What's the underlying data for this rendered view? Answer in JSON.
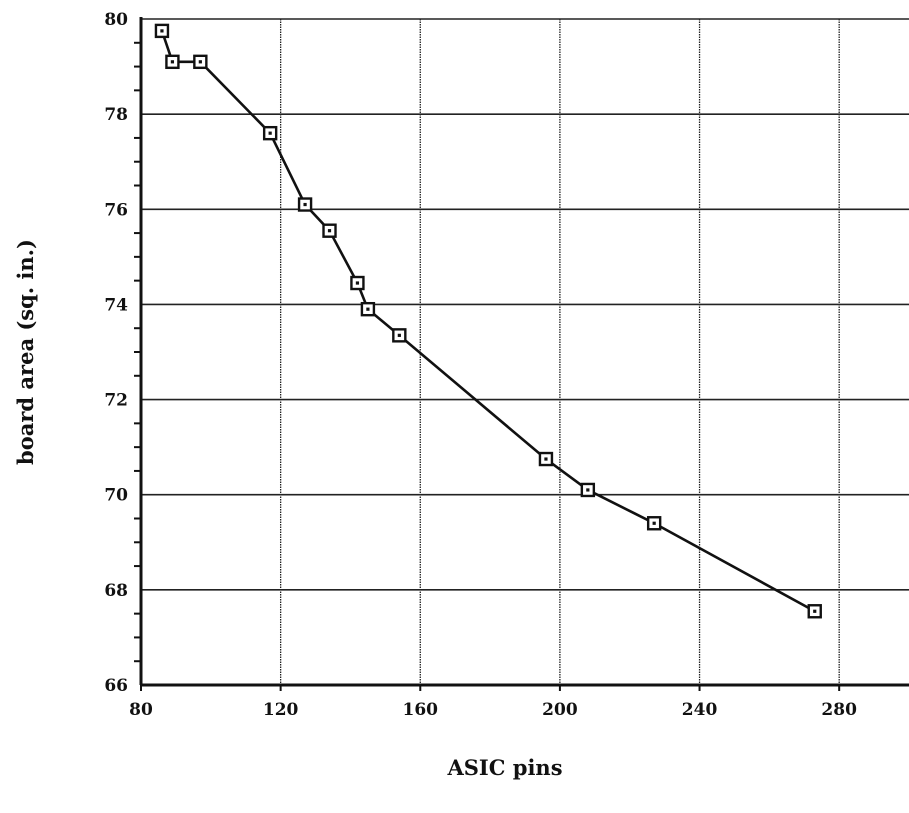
{
  "chart_data": {
    "type": "line",
    "title": "",
    "xlabel": "ASIC pins",
    "ylabel": "board area (sq. in.)",
    "xlim": [
      80,
      300
    ],
    "ylim": [
      66,
      80
    ],
    "xticks": [
      80,
      120,
      160,
      200,
      240,
      280
    ],
    "xtick_labels": [
      "80",
      "120",
      "160",
      "200",
      "240",
      "280"
    ],
    "yticks": [
      66,
      68,
      70,
      72,
      74,
      76,
      78,
      80
    ],
    "ytick_labels": [
      "66",
      "68",
      "70",
      "72",
      "74",
      "76",
      "78",
      "80"
    ],
    "grid": true,
    "legend": "none",
    "marker": "square",
    "colors": {
      "line": "#111111",
      "grid": "#222222",
      "background": "#ffffff"
    },
    "series": [
      {
        "x": [
          86,
          89,
          97,
          117,
          127,
          134,
          142,
          145,
          154,
          196,
          208,
          227,
          273
        ],
        "y": [
          79.75,
          79.1,
          79.1,
          77.6,
          76.1,
          75.55,
          74.45,
          73.9,
          73.35,
          70.75,
          70.1,
          69.4,
          67.55
        ]
      }
    ]
  }
}
